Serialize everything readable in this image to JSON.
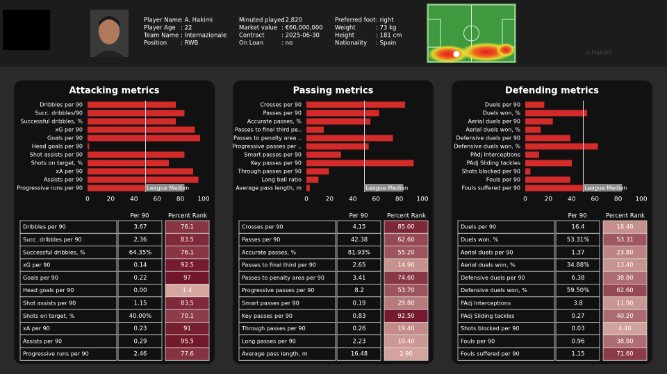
{
  "header": {
    "fields": [
      [
        {
          "label": "Player Name",
          "value": ": A. Hakimi"
        },
        {
          "label": "Player Age",
          "value": ": 22"
        },
        {
          "label": "Team Name",
          "value": ": Internazionale"
        },
        {
          "label": "Position",
          "value": ": RWB"
        }
      ],
      [
        {
          "label": "Minuted played",
          "value": ": 2,820"
        },
        {
          "label": "Market value",
          "value": ": €60,000,000"
        },
        {
          "label": "Contract",
          "value": ": 2025-06-30"
        },
        {
          "label": "On Loan",
          "value": ": no"
        }
      ],
      [
        {
          "label": "Preferred foot",
          "value": ": right"
        },
        {
          "label": "Weight",
          "value": ": 73 kg"
        },
        {
          "label": "Height",
          "value": ": 181 cm"
        },
        {
          "label": "Nationality",
          "value": ": Spain"
        }
      ]
    ],
    "heatmap_label": "A.Hakimi"
  },
  "chart_data": [
    {
      "type": "bar",
      "title": "Attacking metrics",
      "categories": [
        "Dribbles per 90",
        "Succ. dribbles/90",
        "Successful dribbles, %",
        "xG per 90",
        "Goals per 90",
        "Head goals per 90",
        "Shot assists per 90",
        "Shots on target, %",
        "xA per 90",
        "Assists per 90",
        "Progressive runs per 90"
      ],
      "values": [
        76.1,
        83.5,
        76.1,
        92.5,
        97,
        1.4,
        83.5,
        70.1,
        91,
        95.5,
        77.6
      ],
      "color": "#d42a2a",
      "xlim": [
        0,
        100
      ],
      "xticks": [
        0,
        20,
        40,
        60,
        80,
        100
      ],
      "median": 50,
      "median_label": "League Median"
    },
    {
      "type": "bar",
      "title": "Passing metrics",
      "categories": [
        "Crosses per 90",
        "Passes per 90",
        "Accurate passes, %",
        "Passes to final third pe..",
        "Passes to penalty area ..",
        "Progressive passes per ..",
        "Smart passes per 90",
        "Key passes per 90",
        "Through passes per 90",
        "Long ball ratio",
        "Average pass length, m"
      ],
      "values": [
        85,
        62.6,
        55.2,
        14.9,
        74.6,
        53.7,
        29.8,
        92.5,
        19.4,
        10.4,
        2.9
      ],
      "color": "#d42a2a",
      "xlim": [
        0,
        100
      ],
      "xticks": [
        0,
        20,
        40,
        60,
        80,
        100
      ],
      "median": 50,
      "median_label": "League Median"
    },
    {
      "type": "bar",
      "title": "Defending metrics",
      "categories": [
        "Duels per 90",
        "Duels won, %",
        "Aerial duels per 90",
        "Aerial duels won, %",
        "Defensive duels per 90",
        "Defensive duels won, %",
        "PAdj Interceptions",
        "PAdj Sliding tackles",
        "Shots blocked per 90",
        "Fouls per 90",
        "Fouls suffered per 90"
      ],
      "values": [
        16.4,
        53.31,
        23.8,
        13.4,
        38.8,
        62.6,
        11.9,
        40.2,
        4.4,
        38.8,
        71.6
      ],
      "color": "#d42a2a",
      "xlim": [
        0,
        100
      ],
      "xticks": [
        0,
        20,
        40,
        60,
        80,
        100
      ],
      "median": 50,
      "median_label": "League Median"
    }
  ],
  "tables": [
    {
      "columns": [
        "Per 90",
        "Percent Rank"
      ],
      "rows": [
        [
          "Dribbles per 90",
          "3.67",
          "76.1"
        ],
        [
          "Succ. dribbles per 90",
          "2.36",
          "83.5"
        ],
        [
          "Successful dribbles, %",
          "64.35%",
          "76.1"
        ],
        [
          "xG per 90",
          "0.14",
          "92.5"
        ],
        [
          "Goals per 90",
          "0.22",
          "97"
        ],
        [
          "Head goals per 90",
          "0.00",
          "1.4"
        ],
        [
          "Shot assists per 90",
          "1.15",
          "83.5"
        ],
        [
          "Shots on target, %",
          "40.00%",
          "70.1"
        ],
        [
          "xA per 90",
          "0.23",
          "91"
        ],
        [
          "Assists per 90",
          "0.29",
          "95.5"
        ],
        [
          "Progressive runs per 90",
          "2.46",
          "77.6"
        ]
      ]
    },
    {
      "columns": [
        "Per 90",
        "Percent Rank"
      ],
      "rows": [
        [
          "Crosses per 90",
          "4.15",
          "85.00"
        ],
        [
          "Passes per 90",
          "42.38",
          "62.60"
        ],
        [
          "Accurate passes, %",
          "81.93%",
          "55.20"
        ],
        [
          "Passes to final third per 90",
          "2.65",
          "14.90"
        ],
        [
          "Passes to penalty area per 90",
          "3.41",
          "74.60"
        ],
        [
          "Progressive passes per 90",
          "8.2",
          "53.70"
        ],
        [
          "Smart passes per 90",
          "0.19",
          "29.80"
        ],
        [
          "Key passes per 90",
          "0.83",
          "92.50"
        ],
        [
          "Through passes per 90",
          "0.26",
          "19.40"
        ],
        [
          "Long passes per 90",
          "2.23",
          "10.40"
        ],
        [
          "Average pass length, m",
          "16.48",
          "2.90"
        ]
      ]
    },
    {
      "columns": [
        "Per 90",
        "Percent Rank"
      ],
      "rows": [
        [
          "Duels per 90",
          "16.4",
          "16.40"
        ],
        [
          "Duels won, %",
          "53.31%",
          "53.31"
        ],
        [
          "Aerial duels per 90",
          "1.37",
          "23.80"
        ],
        [
          "Aerial duels won, %",
          "34.88%",
          "13.40"
        ],
        [
          "Defensive duels per 90",
          "6.38",
          "38.80"
        ],
        [
          "Defensive duels won, %",
          "59.50%",
          "62.60"
        ],
        [
          "PAdj Interceptions",
          "3.8",
          "11.90"
        ],
        [
          "PAdj Sliding tackles",
          "0.27",
          "40.20"
        ],
        [
          "Shots blocked per 90",
          "0.03",
          "4.40"
        ],
        [
          "Fouls per 90",
          "0.96",
          "38.80"
        ],
        [
          "Fouls suffered per 90",
          "1.15",
          "71.60"
        ]
      ]
    }
  ]
}
